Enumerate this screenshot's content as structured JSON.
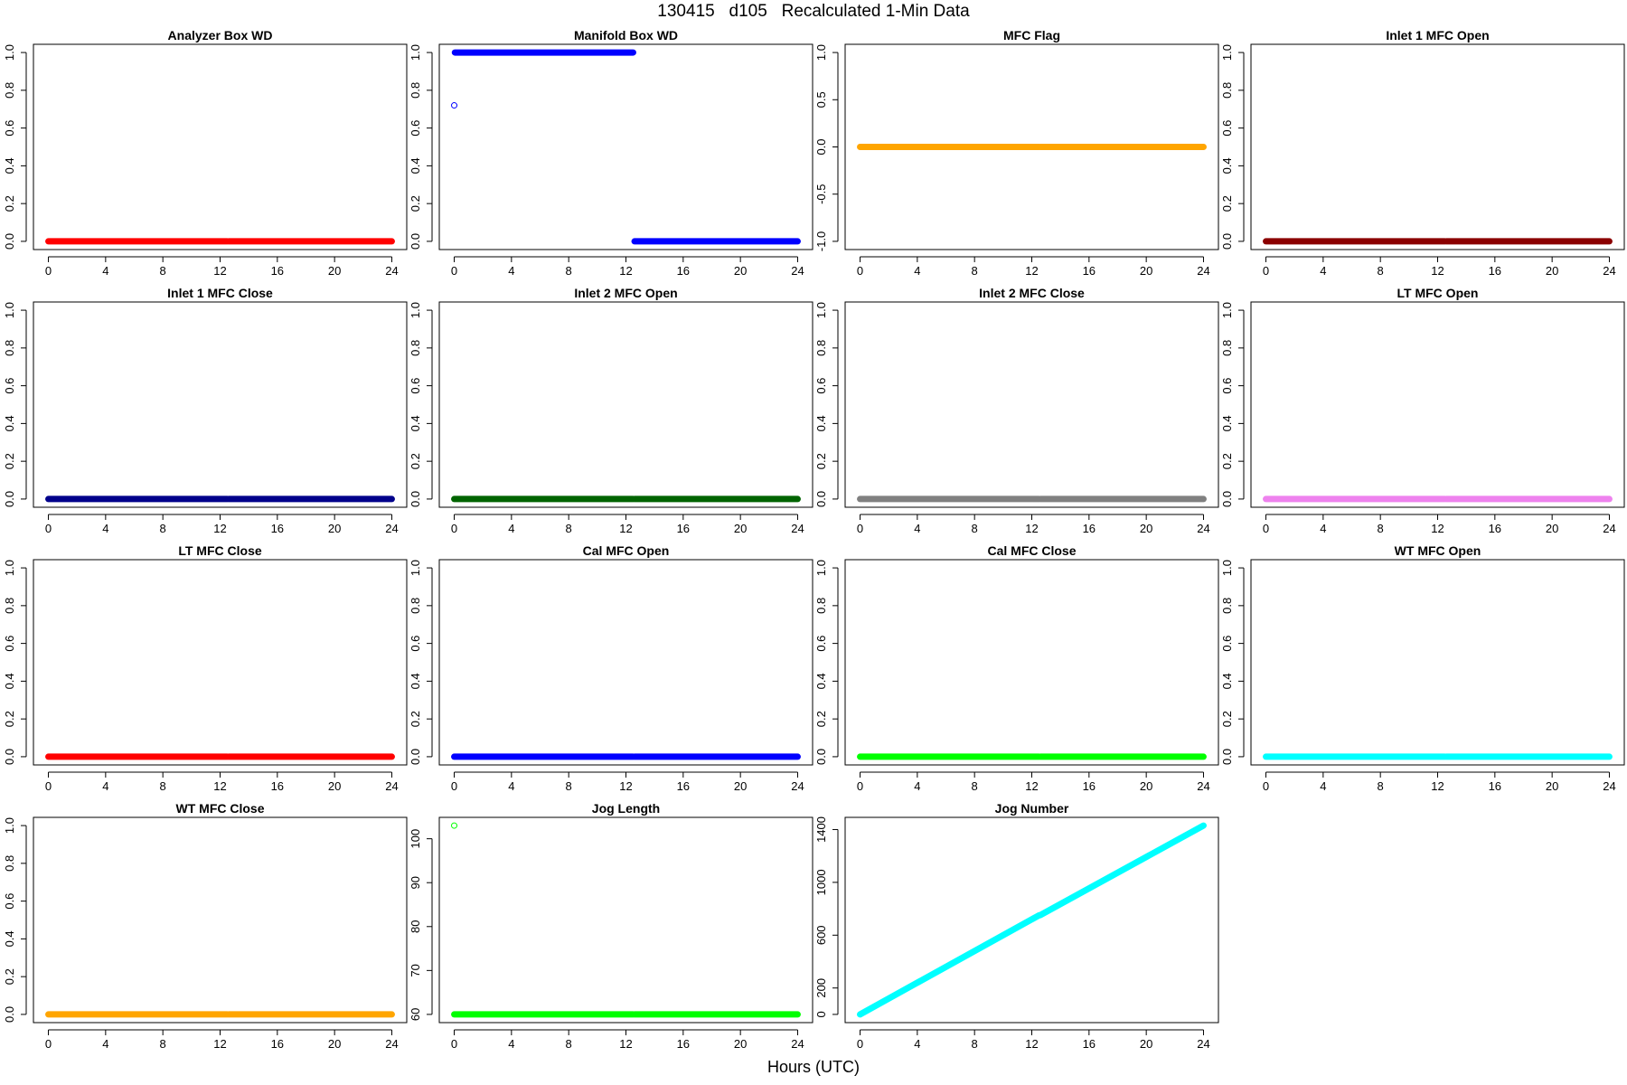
{
  "title": "130415   d105   Recalculated 1-Min Data",
  "xlabel": "Hours (UTC)",
  "chart_data": [
    {
      "type": "scatter",
      "title": "Analyzer Box WD",
      "color": "#FF0000",
      "xlim": [
        0,
        24
      ],
      "ylim": [
        0,
        1
      ],
      "x_ticks": [
        0,
        4,
        8,
        12,
        16,
        20,
        24
      ],
      "y_ticks": [
        0.0,
        0.2,
        0.4,
        0.6,
        0.8,
        1.0
      ],
      "y_tick_labels": [
        "0.0",
        "0.2",
        "0.4",
        "0.6",
        "0.8",
        "1.0"
      ],
      "segments": [
        {
          "x": [
            0,
            12.5
          ],
          "y": [
            0,
            0
          ]
        },
        {
          "x": [
            12.6,
            24
          ],
          "y": [
            0,
            0
          ]
        }
      ],
      "points": []
    },
    {
      "type": "scatter",
      "title": "Manifold Box WD",
      "color": "#0000FF",
      "xlim": [
        0,
        24
      ],
      "ylim": [
        0,
        1
      ],
      "x_ticks": [
        0,
        4,
        8,
        12,
        16,
        20,
        24
      ],
      "y_ticks": [
        0.0,
        0.2,
        0.4,
        0.6,
        0.8,
        1.0
      ],
      "y_tick_labels": [
        "0.0",
        "0.2",
        "0.4",
        "0.6",
        "0.8",
        "1.0"
      ],
      "segments": [
        {
          "x": [
            0.05,
            12.5
          ],
          "y": [
            1,
            1
          ]
        },
        {
          "x": [
            12.6,
            24
          ],
          "y": [
            0,
            0
          ]
        }
      ],
      "points": [
        {
          "x": 0,
          "y": 0.72
        }
      ]
    },
    {
      "type": "scatter",
      "title": "MFC Flag",
      "color": "#FFA500",
      "xlim": [
        0,
        24
      ],
      "ylim": [
        -1,
        1
      ],
      "x_ticks": [
        0,
        4,
        8,
        12,
        16,
        20,
        24
      ],
      "y_ticks": [
        -1.0,
        -0.5,
        0.0,
        0.5,
        1.0
      ],
      "y_tick_labels": [
        "-1.0",
        "-0.5",
        "0.0",
        "0.5",
        "1.0"
      ],
      "segments": [
        {
          "x": [
            0,
            12.5
          ],
          "y": [
            0,
            0
          ]
        },
        {
          "x": [
            12.6,
            24
          ],
          "y": [
            0,
            0
          ]
        }
      ],
      "points": []
    },
    {
      "type": "scatter",
      "title": "Inlet 1 MFC Open",
      "color": "#8B0000",
      "xlim": [
        0,
        24
      ],
      "ylim": [
        0,
        1
      ],
      "x_ticks": [
        0,
        4,
        8,
        12,
        16,
        20,
        24
      ],
      "y_ticks": [
        0.0,
        0.2,
        0.4,
        0.6,
        0.8,
        1.0
      ],
      "y_tick_labels": [
        "0.0",
        "0.2",
        "0.4",
        "0.6",
        "0.8",
        "1.0"
      ],
      "segments": [
        {
          "x": [
            0,
            12.5
          ],
          "y": [
            0,
            0
          ]
        },
        {
          "x": [
            12.6,
            24
          ],
          "y": [
            0,
            0
          ]
        }
      ],
      "points": []
    },
    {
      "type": "scatter",
      "title": "Inlet 1 MFC Close",
      "color": "#00008B",
      "xlim": [
        0,
        24
      ],
      "ylim": [
        0,
        1
      ],
      "x_ticks": [
        0,
        4,
        8,
        12,
        16,
        20,
        24
      ],
      "y_ticks": [
        0.0,
        0.2,
        0.4,
        0.6,
        0.8,
        1.0
      ],
      "y_tick_labels": [
        "0.0",
        "0.2",
        "0.4",
        "0.6",
        "0.8",
        "1.0"
      ],
      "segments": [
        {
          "x": [
            0,
            12.5
          ],
          "y": [
            0,
            0
          ]
        },
        {
          "x": [
            12.6,
            24
          ],
          "y": [
            0,
            0
          ]
        }
      ],
      "points": []
    },
    {
      "type": "scatter",
      "title": "Inlet 2 MFC Open",
      "color": "#006400",
      "xlim": [
        0,
        24
      ],
      "ylim": [
        0,
        1
      ],
      "x_ticks": [
        0,
        4,
        8,
        12,
        16,
        20,
        24
      ],
      "y_ticks": [
        0.0,
        0.2,
        0.4,
        0.6,
        0.8,
        1.0
      ],
      "y_tick_labels": [
        "0.0",
        "0.2",
        "0.4",
        "0.6",
        "0.8",
        "1.0"
      ],
      "segments": [
        {
          "x": [
            0,
            12.5
          ],
          "y": [
            0,
            0
          ]
        },
        {
          "x": [
            12.6,
            24
          ],
          "y": [
            0,
            0
          ]
        }
      ],
      "points": []
    },
    {
      "type": "scatter",
      "title": "Inlet 2 MFC Close",
      "color": "#808080",
      "xlim": [
        0,
        24
      ],
      "ylim": [
        0,
        1
      ],
      "x_ticks": [
        0,
        4,
        8,
        12,
        16,
        20,
        24
      ],
      "y_ticks": [
        0.0,
        0.2,
        0.4,
        0.6,
        0.8,
        1.0
      ],
      "y_tick_labels": [
        "0.0",
        "0.2",
        "0.4",
        "0.6",
        "0.8",
        "1.0"
      ],
      "segments": [
        {
          "x": [
            0,
            12.5
          ],
          "y": [
            0,
            0
          ]
        },
        {
          "x": [
            12.6,
            24
          ],
          "y": [
            0,
            0
          ]
        }
      ],
      "points": []
    },
    {
      "type": "scatter",
      "title": "LT MFC Open",
      "color": "#EE82EE",
      "xlim": [
        0,
        24
      ],
      "ylim": [
        0,
        1
      ],
      "x_ticks": [
        0,
        4,
        8,
        12,
        16,
        20,
        24
      ],
      "y_ticks": [
        0.0,
        0.2,
        0.4,
        0.6,
        0.8,
        1.0
      ],
      "y_tick_labels": [
        "0.0",
        "0.2",
        "0.4",
        "0.6",
        "0.8",
        "1.0"
      ],
      "segments": [
        {
          "x": [
            0,
            12.5
          ],
          "y": [
            0,
            0
          ]
        },
        {
          "x": [
            12.6,
            24
          ],
          "y": [
            0,
            0
          ]
        }
      ],
      "points": []
    },
    {
      "type": "scatter",
      "title": "LT MFC Close",
      "color": "#FF0000",
      "xlim": [
        0,
        24
      ],
      "ylim": [
        0,
        1
      ],
      "x_ticks": [
        0,
        4,
        8,
        12,
        16,
        20,
        24
      ],
      "y_ticks": [
        0.0,
        0.2,
        0.4,
        0.6,
        0.8,
        1.0
      ],
      "y_tick_labels": [
        "0.0",
        "0.2",
        "0.4",
        "0.6",
        "0.8",
        "1.0"
      ],
      "segments": [
        {
          "x": [
            0,
            12.5
          ],
          "y": [
            0,
            0
          ]
        },
        {
          "x": [
            12.6,
            24
          ],
          "y": [
            0,
            0
          ]
        }
      ],
      "points": []
    },
    {
      "type": "scatter",
      "title": "Cal MFC Open",
      "color": "#0000FF",
      "xlim": [
        0,
        24
      ],
      "ylim": [
        0,
        1
      ],
      "x_ticks": [
        0,
        4,
        8,
        12,
        16,
        20,
        24
      ],
      "y_ticks": [
        0.0,
        0.2,
        0.4,
        0.6,
        0.8,
        1.0
      ],
      "y_tick_labels": [
        "0.0",
        "0.2",
        "0.4",
        "0.6",
        "0.8",
        "1.0"
      ],
      "segments": [
        {
          "x": [
            0,
            12.5
          ],
          "y": [
            0,
            0
          ]
        },
        {
          "x": [
            12.6,
            24
          ],
          "y": [
            0,
            0
          ]
        }
      ],
      "points": []
    },
    {
      "type": "scatter",
      "title": "Cal MFC Close",
      "color": "#00FF00",
      "xlim": [
        0,
        24
      ],
      "ylim": [
        0,
        1
      ],
      "x_ticks": [
        0,
        4,
        8,
        12,
        16,
        20,
        24
      ],
      "y_ticks": [
        0.0,
        0.2,
        0.4,
        0.6,
        0.8,
        1.0
      ],
      "y_tick_labels": [
        "0.0",
        "0.2",
        "0.4",
        "0.6",
        "0.8",
        "1.0"
      ],
      "segments": [
        {
          "x": [
            0,
            12.5
          ],
          "y": [
            0,
            0
          ]
        },
        {
          "x": [
            12.6,
            24
          ],
          "y": [
            0,
            0
          ]
        }
      ],
      "points": []
    },
    {
      "type": "scatter",
      "title": "WT MFC Open",
      "color": "#00FFFF",
      "xlim": [
        0,
        24
      ],
      "ylim": [
        0,
        1
      ],
      "x_ticks": [
        0,
        4,
        8,
        12,
        16,
        20,
        24
      ],
      "y_ticks": [
        0.0,
        0.2,
        0.4,
        0.6,
        0.8,
        1.0
      ],
      "y_tick_labels": [
        "0.0",
        "0.2",
        "0.4",
        "0.6",
        "0.8",
        "1.0"
      ],
      "segments": [
        {
          "x": [
            0,
            12.5
          ],
          "y": [
            0,
            0
          ]
        },
        {
          "x": [
            12.6,
            24
          ],
          "y": [
            0,
            0
          ]
        }
      ],
      "points": []
    },
    {
      "type": "scatter",
      "title": "WT MFC Close",
      "color": "#FFA500",
      "xlim": [
        0,
        24
      ],
      "ylim": [
        0,
        1
      ],
      "x_ticks": [
        0,
        4,
        8,
        12,
        16,
        20,
        24
      ],
      "y_ticks": [
        0.0,
        0.2,
        0.4,
        0.6,
        0.8,
        1.0
      ],
      "y_tick_labels": [
        "0.0",
        "0.2",
        "0.4",
        "0.6",
        "0.8",
        "1.0"
      ],
      "segments": [
        {
          "x": [
            0,
            12.5
          ],
          "y": [
            0,
            0
          ]
        },
        {
          "x": [
            12.6,
            24
          ],
          "y": [
            0,
            0
          ]
        }
      ],
      "points": []
    },
    {
      "type": "scatter",
      "title": "Jog Length",
      "color": "#00FF00",
      "xlim": [
        0,
        24
      ],
      "ylim": [
        60,
        103
      ],
      "x_ticks": [
        0,
        4,
        8,
        12,
        16,
        20,
        24
      ],
      "y_ticks": [
        60,
        70,
        80,
        90,
        100
      ],
      "y_tick_labels": [
        "60",
        "70",
        "80",
        "90",
        "100"
      ],
      "segments": [
        {
          "x": [
            0,
            12.5
          ],
          "y": [
            60,
            60
          ]
        },
        {
          "x": [
            12.6,
            24
          ],
          "y": [
            60,
            60
          ]
        }
      ],
      "points": [
        {
          "x": 0,
          "y": 103
        }
      ]
    },
    {
      "type": "scatter",
      "title": "Jog Number",
      "color": "#00FFFF",
      "xlim": [
        0,
        24
      ],
      "ylim": [
        0,
        1430
      ],
      "x_ticks": [
        0,
        4,
        8,
        12,
        16,
        20,
        24
      ],
      "y_ticks": [
        0,
        200,
        600,
        1000,
        1400
      ],
      "y_tick_labels": [
        "0",
        "200",
        "600",
        "1000",
        "1400"
      ],
      "segments": [
        {
          "x": [
            0,
            12.5
          ],
          "y": [
            0,
            750
          ]
        },
        {
          "x": [
            12.6,
            24
          ],
          "y": [
            752,
            1430
          ]
        }
      ],
      "points": []
    }
  ]
}
